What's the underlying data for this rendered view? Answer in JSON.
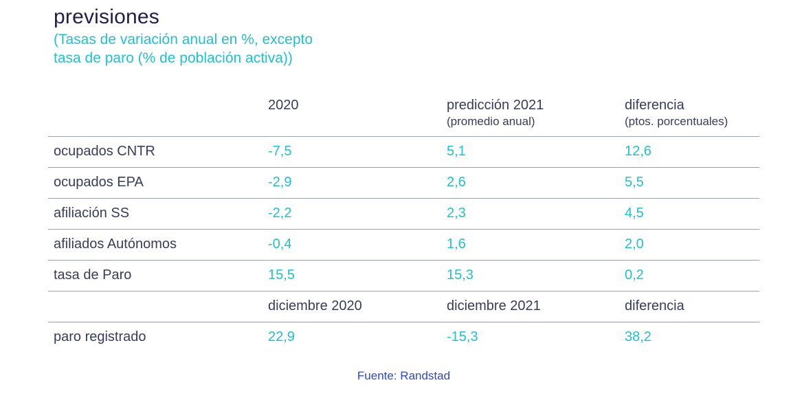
{
  "colors": {
    "title_navy": "#211d4e",
    "text_navy": "#363c5b",
    "accent_teal": "#1fc2cd",
    "source_blue": "#2b46d4",
    "divider_gray": "#9ba1ab"
  },
  "chart_data": {
    "type": "table",
    "title": "previsiones",
    "subtitle_lines": [
      "(Tasas de variación anual en %, excepto",
      "tasa de paro (% de población activa))"
    ],
    "columns": [
      {
        "label": "",
        "sublabel": ""
      },
      {
        "label": "2020",
        "sublabel": ""
      },
      {
        "label": "predicción 2021",
        "sublabel": "(promedio anual)"
      },
      {
        "label": "diferencia",
        "sublabel": "(ptos. porcentuales)"
      }
    ],
    "annual_rows": [
      {
        "label": "ocupados CNTR",
        "values": [
          "-7,5",
          "5,1",
          "12,6"
        ]
      },
      {
        "label": "ocupados EPA",
        "values": [
          "-2,9",
          "2,6",
          "5,5"
        ]
      },
      {
        "label": "afiliación SS",
        "values": [
          "-2,2",
          "2,3",
          "4,5"
        ]
      },
      {
        "label": "afiliados Autónomos",
        "values": [
          "-0,4",
          "1,6",
          "2,0"
        ]
      },
      {
        "label": "tasa de Paro",
        "values": [
          "15,5",
          "15,3",
          "0,2"
        ]
      }
    ],
    "monthly_header": {
      "labels": [
        "diciembre 2020",
        "diciembre 2021",
        "diferencia"
      ]
    },
    "monthly_rows": [
      {
        "label": "paro registrado",
        "values": [
          "22,9",
          "-15,3",
          "38,2"
        ]
      }
    ],
    "source": "Fuente: Randstad"
  }
}
